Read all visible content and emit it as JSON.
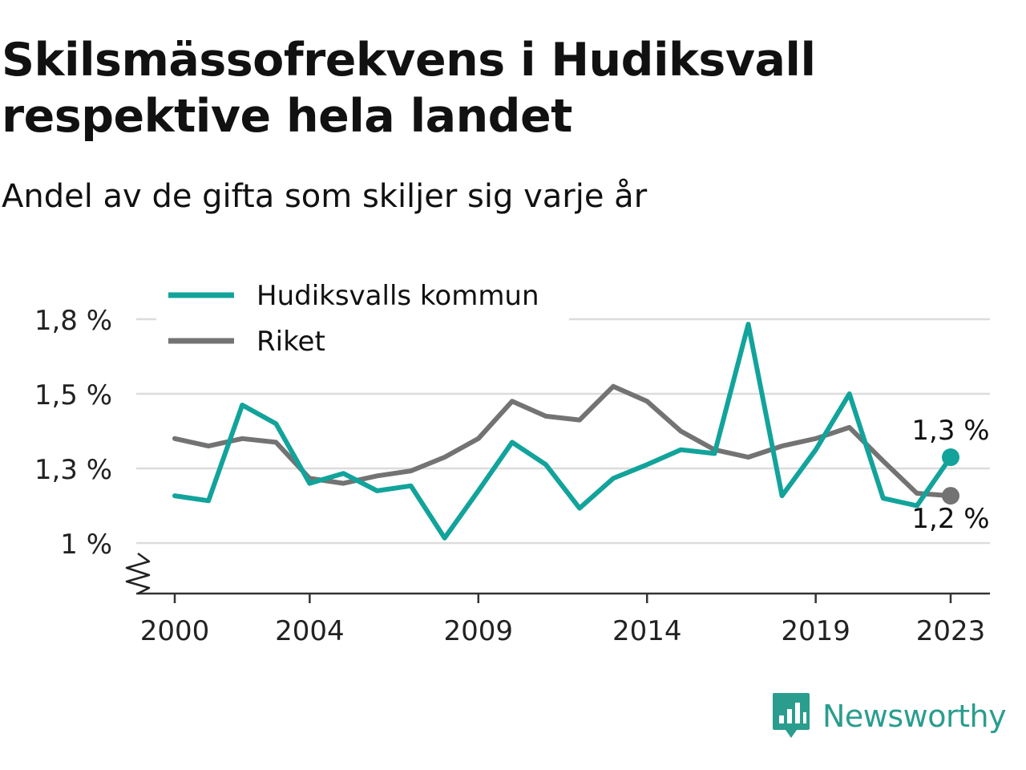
{
  "title": "Skilsmässofrekvens i Hudiksvall respektive hela landet",
  "subtitle": "Andel av de gifta som skiljer sig varje år",
  "brand": {
    "name": "Newsworthy",
    "logo_icon": "bar-chart-speech-bubble-icon",
    "color": "#2a9d8f"
  },
  "chart_data": {
    "type": "line",
    "title": "Skilsmässofrekvens i Hudiksvall respektive hela landet",
    "subtitle": "Andel av de gifta som skiljer sig varje år",
    "x": [
      2000,
      2001,
      2002,
      2003,
      2004,
      2005,
      2006,
      2007,
      2008,
      2009,
      2010,
      2011,
      2012,
      2013,
      2014,
      2015,
      2016,
      2017,
      2018,
      2019,
      2020,
      2021,
      2022,
      2023
    ],
    "x_ticks": [
      2000,
      2004,
      2009,
      2014,
      2019,
      2023
    ],
    "y_ticks": [
      1.0,
      1.3,
      1.5,
      1.8
    ],
    "y_tick_labels": [
      "1 %",
      "1,3 %",
      "1,5 %",
      "1,8 %"
    ],
    "ylim": [
      0.83,
      1.8
    ],
    "y_axis_break": true,
    "grid": "horizontal",
    "legend_position": "top-left",
    "series": [
      {
        "name": "Hudiksvalls kommun",
        "color": "#12a39b",
        "values": [
          1.19,
          1.17,
          1.47,
          1.42,
          1.24,
          1.28,
          1.21,
          1.23,
          1.02,
          1.21,
          1.37,
          1.31,
          1.14,
          1.26,
          1.31,
          1.35,
          1.34,
          1.78,
          1.19,
          1.35,
          1.5,
          1.18,
          1.15,
          1.33
        ],
        "end_label": "1,3 %"
      },
      {
        "name": "Riket",
        "color": "#737373",
        "values": [
          1.38,
          1.36,
          1.38,
          1.37,
          1.26,
          1.24,
          1.27,
          1.29,
          1.33,
          1.38,
          1.48,
          1.44,
          1.43,
          1.53,
          1.48,
          1.4,
          1.35,
          1.33,
          1.36,
          1.38,
          1.41,
          1.32,
          1.2,
          1.19
        ],
        "end_label": "1,2 %"
      }
    ]
  }
}
